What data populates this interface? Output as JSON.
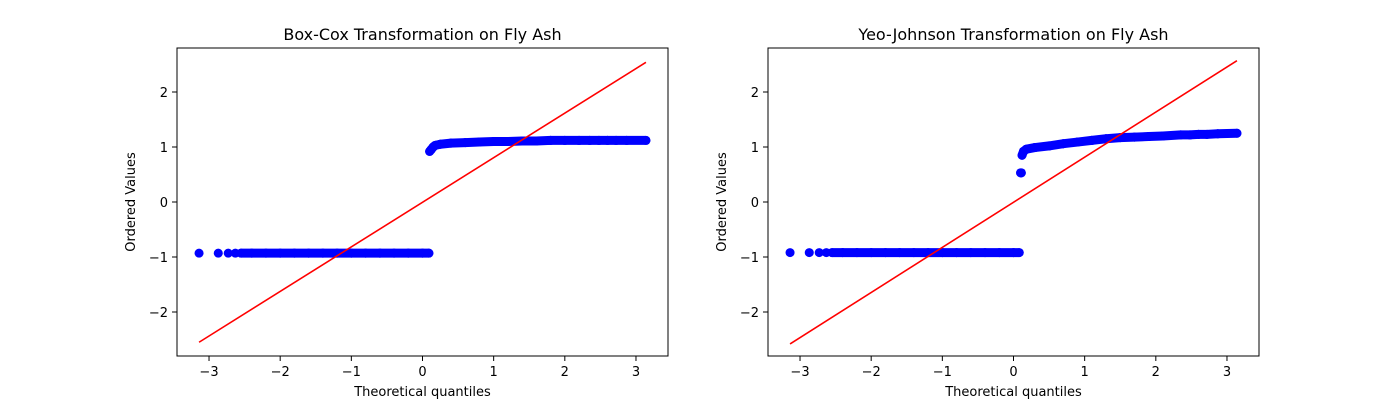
{
  "chart_data": [
    {
      "type": "scatter",
      "title": "Box-Cox Transformation on Fly Ash",
      "xlabel": "Theoretical quantiles",
      "ylabel": "Ordered Values",
      "xlim": [
        -3.45,
        3.45
      ],
      "ylim": [
        -2.8,
        2.8
      ],
      "xticks": [
        -3,
        -2,
        -1,
        0,
        1,
        2,
        3
      ],
      "yticks": [
        -2,
        -1,
        0,
        1,
        2
      ],
      "xtick_labels": [
        "−3",
        "−2",
        "−1",
        "0",
        "1",
        "2",
        "3"
      ],
      "ytick_labels": [
        "−2",
        "−1",
        "0",
        "1",
        "2"
      ],
      "point_color": "#0000ff",
      "line_color": "#ff0000",
      "series": [
        {
          "values": [
            [
              -3.14,
              -0.93
            ],
            [
              -2.87,
              -0.93
            ],
            [
              -2.73,
              -0.93
            ],
            [
              -2.63,
              -0.93
            ],
            [
              -2.55,
              -0.93
            ],
            [
              -2.4,
              -0.93
            ],
            [
              -2.2,
              -0.93
            ],
            [
              -2.0,
              -0.93
            ],
            [
              -1.8,
              -0.93
            ],
            [
              -1.6,
              -0.93
            ],
            [
              -1.4,
              -0.93
            ],
            [
              -1.2,
              -0.93
            ],
            [
              -1.0,
              -0.93
            ],
            [
              -0.8,
              -0.93
            ],
            [
              -0.6,
              -0.93
            ],
            [
              -0.4,
              -0.93
            ],
            [
              -0.2,
              -0.93
            ],
            [
              0.0,
              -0.93
            ],
            [
              0.09,
              -0.93
            ],
            [
              0.1,
              0.92
            ],
            [
              0.12,
              0.95
            ],
            [
              0.15,
              1.0
            ],
            [
              0.18,
              1.03
            ],
            [
              0.25,
              1.05
            ],
            [
              0.4,
              1.07
            ],
            [
              0.6,
              1.08
            ],
            [
              0.8,
              1.09
            ],
            [
              1.0,
              1.1
            ],
            [
              1.2,
              1.1
            ],
            [
              1.4,
              1.11
            ],
            [
              1.6,
              1.11
            ],
            [
              1.8,
              1.12
            ],
            [
              2.0,
              1.12
            ],
            [
              2.2,
              1.12
            ],
            [
              2.35,
              1.12
            ],
            [
              2.48,
              1.12
            ],
            [
              2.6,
              1.12
            ],
            [
              2.72,
              1.12
            ],
            [
              2.87,
              1.12
            ],
            [
              3.14,
              1.12
            ]
          ]
        },
        {
          "fit_line": {
            "x": [
              -3.14,
              3.14
            ],
            "y": [
              -2.55,
              2.54
            ]
          }
        }
      ]
    },
    {
      "type": "scatter",
      "title": "Yeo-Johnson Transformation on Fly Ash",
      "xlabel": "Theoretical quantiles",
      "ylabel": "Ordered Values",
      "xlim": [
        -3.45,
        3.45
      ],
      "ylim": [
        -2.8,
        2.8
      ],
      "xticks": [
        -3,
        -2,
        -1,
        0,
        1,
        2,
        3
      ],
      "yticks": [
        -2,
        -1,
        0,
        1,
        2
      ],
      "xtick_labels": [
        "−3",
        "−2",
        "−1",
        "0",
        "1",
        "2",
        "3"
      ],
      "ytick_labels": [
        "−2",
        "−1",
        "0",
        "1",
        "2"
      ],
      "point_color": "#0000ff",
      "line_color": "#ff0000",
      "series": [
        {
          "values": [
            [
              -3.14,
              -0.92
            ],
            [
              -2.87,
              -0.92
            ],
            [
              -2.73,
              -0.92
            ],
            [
              -2.63,
              -0.92
            ],
            [
              -2.55,
              -0.92
            ],
            [
              -2.4,
              -0.92
            ],
            [
              -2.2,
              -0.92
            ],
            [
              -2.0,
              -0.92
            ],
            [
              -1.8,
              -0.92
            ],
            [
              -1.6,
              -0.92
            ],
            [
              -1.4,
              -0.92
            ],
            [
              -1.2,
              -0.92
            ],
            [
              -1.0,
              -0.92
            ],
            [
              -0.8,
              -0.92
            ],
            [
              -0.6,
              -0.92
            ],
            [
              -0.4,
              -0.92
            ],
            [
              -0.2,
              -0.92
            ],
            [
              0.0,
              -0.92
            ],
            [
              0.08,
              -0.92
            ],
            [
              0.1,
              0.53
            ],
            [
              0.11,
              0.53
            ],
            [
              0.12,
              0.85
            ],
            [
              0.14,
              0.92
            ],
            [
              0.18,
              0.96
            ],
            [
              0.3,
              0.99
            ],
            [
              0.5,
              1.02
            ],
            [
              0.7,
              1.06
            ],
            [
              0.9,
              1.09
            ],
            [
              1.1,
              1.12
            ],
            [
              1.3,
              1.15
            ],
            [
              1.5,
              1.17
            ],
            [
              1.7,
              1.18
            ],
            [
              1.9,
              1.19
            ],
            [
              2.1,
              1.2
            ],
            [
              2.35,
              1.22
            ],
            [
              2.48,
              1.22
            ],
            [
              2.6,
              1.23
            ],
            [
              2.72,
              1.23
            ],
            [
              2.87,
              1.24
            ],
            [
              3.14,
              1.25
            ]
          ]
        },
        {
          "fit_line": {
            "x": [
              -3.14,
              3.14
            ],
            "y": [
              -2.58,
              2.57
            ]
          }
        }
      ]
    }
  ]
}
